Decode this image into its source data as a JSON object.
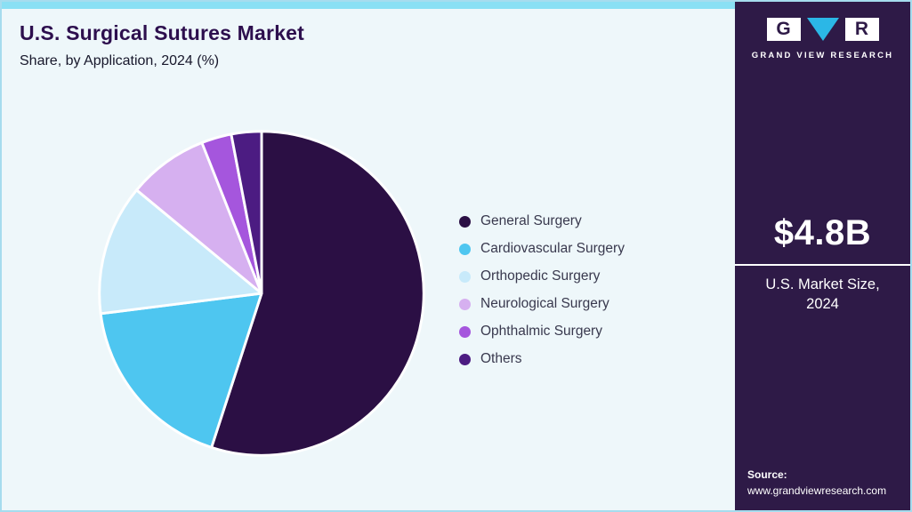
{
  "header": {
    "title": "U.S. Surgical Sutures Market",
    "subtitle": "Share, by Application, 2024 (%)"
  },
  "chart_data": {
    "type": "pie",
    "title": "U.S. Surgical Sutures Market Share, by Application, 2024 (%)",
    "labels": [
      "General Surgery",
      "Cardiovascular Surgery",
      "Orthopedic Surgery",
      "Neurological Surgery",
      "Ophthalmic Surgery",
      "Others"
    ],
    "values": [
      55,
      18,
      13,
      8,
      3,
      3
    ],
    "colors": [
      "#2b0f44",
      "#4ec6f0",
      "#c8eafa",
      "#d6b0f0",
      "#a556dd",
      "#4c1c82"
    ],
    "start_angle_deg": 0,
    "direction": "clockwise",
    "legend_position": "right",
    "slice_stroke": "#ffffff"
  },
  "sidebar": {
    "background": "#2e1a47",
    "accent_cyan": "#2bb7e6",
    "logo_letter_g": "G",
    "logo_letter_r": "R",
    "logo_text": "GRAND VIEW RESEARCH",
    "market_size_value": "$4.8B",
    "market_size_label": "U.S. Market Size, 2024",
    "source_label": "Source:",
    "source_url": "www.grandviewresearch.com"
  },
  "theme": {
    "page_background": "#eef7fa",
    "border_color": "#a6dcee",
    "top_strip_color": "#8ae0f4",
    "title_color": "#2d0f4e"
  }
}
